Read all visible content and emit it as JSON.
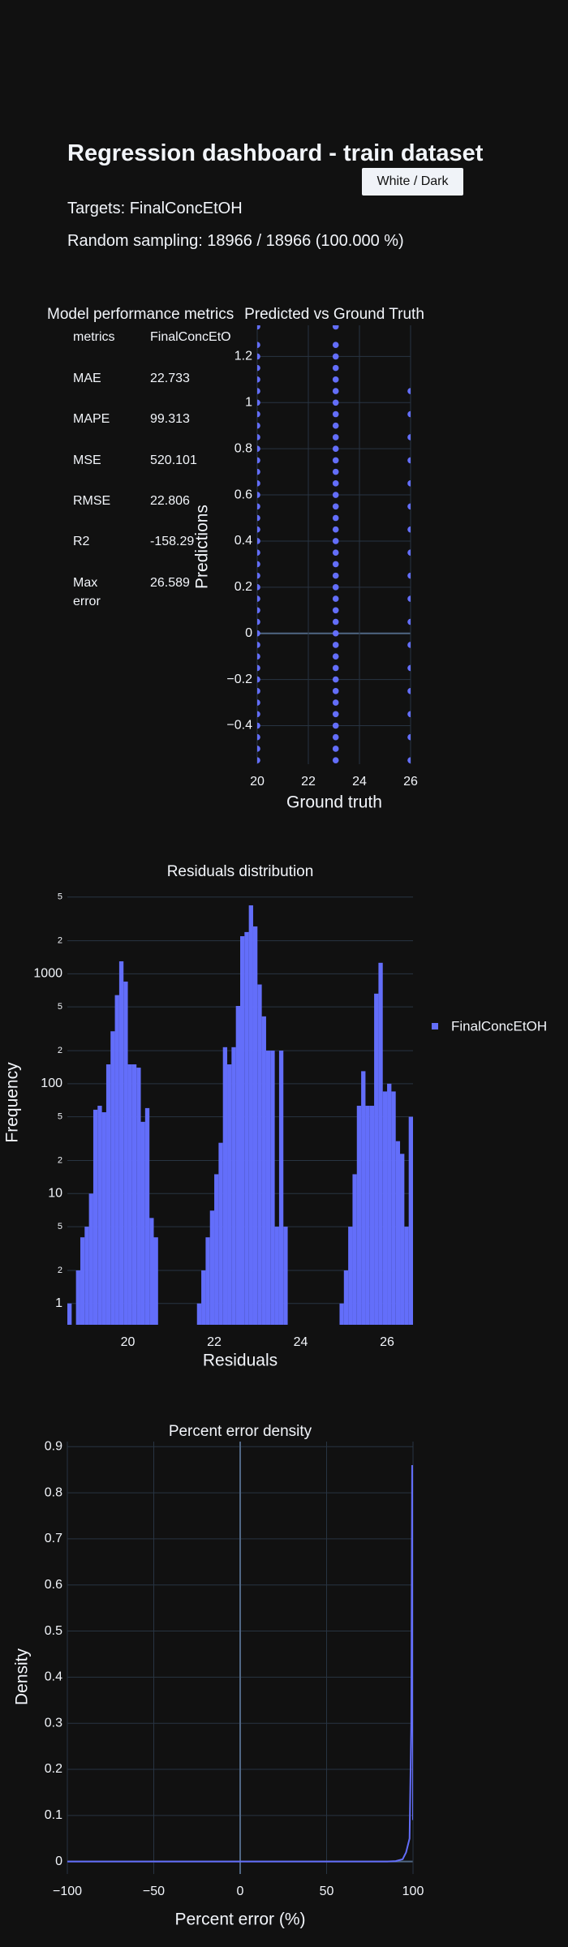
{
  "header": {
    "title": "Regression dashboard - train dataset",
    "theme_button": "White / Dark",
    "targets": "Targets: FinalConcEtOH",
    "sampling": "Random sampling: 18966 / 18966 (100.000 %)"
  },
  "metrics_table": {
    "title": "Model performance metrics",
    "columns": [
      "metrics",
      "FinalConcEtOH"
    ],
    "rows": [
      [
        "MAE",
        "22.733"
      ],
      [
        "MAPE",
        "99.313"
      ],
      [
        "MSE",
        "520.101"
      ],
      [
        "RMSE",
        "22.806"
      ],
      [
        "R2",
        "-158.29"
      ],
      [
        "Max error",
        "26.589"
      ]
    ]
  },
  "chart_data": [
    {
      "type": "scatter",
      "title": "Predicted vs Ground Truth",
      "x_label": "Ground truth",
      "y_label": "Predictions",
      "color": "#636efa",
      "grid": "both",
      "x": [
        20,
        20,
        20,
        20,
        20,
        20,
        20,
        20,
        20,
        20,
        20,
        20,
        20,
        20,
        20,
        20,
        20,
        20,
        20,
        20,
        20,
        20,
        20,
        20,
        20,
        20,
        20,
        20,
        20,
        20,
        20,
        20,
        20,
        20,
        20,
        20,
        20,
        20,
        23.07,
        23.07,
        23.07,
        23.07,
        23.07,
        23.07,
        23.07,
        23.07,
        23.07,
        23.07,
        23.07,
        23.07,
        23.07,
        23.07,
        23.07,
        23.07,
        23.07,
        23.07,
        23.07,
        23.07,
        23.07,
        23.07,
        23.07,
        23.07,
        23.07,
        23.07,
        23.07,
        23.07,
        23.07,
        23.07,
        23.07,
        23.07,
        23.07,
        23.07,
        23.07,
        23.07,
        23.07,
        23.07,
        26,
        26,
        26,
        26,
        26,
        26,
        26,
        26,
        26,
        26,
        26,
        26,
        26,
        26,
        26,
        26,
        26
      ],
      "y": [
        -0.55,
        -0.5,
        -0.45,
        -0.4,
        -0.35,
        -0.3,
        -0.25,
        -0.2,
        -0.15,
        -0.1,
        -0.05,
        0,
        0.05,
        0.1,
        0.15,
        0.2,
        0.25,
        0.3,
        0.35,
        0.4,
        0.45,
        0.5,
        0.55,
        0.6,
        0.65,
        0.7,
        0.75,
        0.8,
        0.85,
        0.9,
        0.95,
        1,
        1.05,
        1.1,
        1.15,
        1.2,
        1.25,
        1.33,
        -0.55,
        -0.5,
        -0.45,
        -0.4,
        -0.35,
        -0.3,
        -0.25,
        -0.2,
        -0.15,
        -0.1,
        -0.05,
        0,
        0.05,
        0.1,
        0.15,
        0.2,
        0.25,
        0.3,
        0.35,
        0.4,
        0.45,
        0.5,
        0.55,
        0.6,
        0.65,
        0.7,
        0.75,
        0.8,
        0.85,
        0.9,
        0.95,
        1,
        1.05,
        1.1,
        1.15,
        1.2,
        1.25,
        1.33,
        -0.55,
        -0.45,
        -0.35,
        -0.25,
        -0.15,
        -0.05,
        0.05,
        0.15,
        0.25,
        0.35,
        0.45,
        0.55,
        0.65,
        0.75,
        0.85,
        0.95,
        1.05
      ],
      "xlim": [
        20,
        26
      ],
      "ylim": [
        -0.567,
        1.335
      ],
      "xticks": [
        20,
        22,
        24,
        26
      ],
      "yticks": [
        {
          "value": -0.4,
          "label": "−0.4"
        },
        {
          "value": -0.2,
          "label": "−0.2"
        },
        0,
        0.2,
        0.4,
        0.6,
        0.8,
        1,
        1.2
      ]
    },
    {
      "type": "histogram",
      "title": "Residuals distribution",
      "x_label": "Residuals",
      "y_label": "Frequency",
      "log_y": true,
      "grid": "y",
      "legend": "right",
      "bins": [
        18.6,
        18.7,
        18.8,
        18.9,
        19.0,
        19.1,
        19.2,
        19.3,
        19.4,
        19.5,
        19.6,
        19.7,
        19.8,
        19.9,
        20.0,
        20.1,
        20.2,
        20.3,
        20.4,
        20.5,
        20.6,
        20.7,
        20.8,
        20.9,
        21.0,
        21.1,
        21.2,
        21.3,
        21.4,
        21.5,
        21.6,
        21.7,
        21.8,
        21.9,
        22.0,
        22.1,
        22.2,
        22.3,
        22.4,
        22.5,
        22.6,
        22.7,
        22.8,
        22.9,
        23.0,
        23.1,
        23.2,
        23.3,
        23.4,
        23.5,
        23.6,
        23.7,
        23.8,
        23.9,
        24.0,
        24.1,
        24.2,
        24.3,
        24.4,
        24.5,
        24.6,
        24.7,
        24.8,
        24.9,
        25.0,
        25.1,
        25.2,
        25.3,
        25.4,
        25.5,
        25.6,
        25.7,
        25.8,
        25.9,
        26.0,
        26.1,
        26.2,
        26.3,
        26.4,
        26.5,
        26.6
      ],
      "series": [
        {
          "name": "FinalConcEtOH",
          "color": "#636efa",
          "values": [
            1,
            0,
            2,
            4,
            5,
            10,
            58,
            63,
            55,
            150,
            300,
            640,
            1300,
            850,
            150,
            150,
            140,
            45,
            60,
            6,
            4,
            0,
            0,
            0,
            0,
            0,
            0,
            0,
            0,
            0,
            1,
            2,
            4,
            7,
            15,
            29,
            215,
            150,
            215,
            510,
            2200,
            2400,
            4200,
            2700,
            800,
            410,
            200,
            200,
            5,
            200,
            5,
            0,
            0,
            0,
            0,
            0,
            0,
            0,
            0,
            0,
            0,
            0,
            0,
            1,
            2,
            5,
            15,
            63,
            130,
            63,
            63,
            660,
            1260,
            85,
            100,
            85,
            30,
            23,
            5,
            50
          ]
        }
      ],
      "xlim": [
        18.6,
        26.6
      ],
      "ylim": [
        0.64,
        6000
      ],
      "xticks": [
        20,
        22,
        24,
        26
      ],
      "yticks": [
        1,
        2,
        5,
        10,
        {
          "value": 20,
          "label": "2"
        },
        {
          "value": 50,
          "label": "5"
        },
        100,
        {
          "value": 200,
          "label": "2"
        },
        {
          "value": 500,
          "label": "5"
        },
        1000,
        {
          "value": 2000,
          "label": "2"
        },
        {
          "value": 5000,
          "label": "5"
        }
      ]
    },
    {
      "type": "line",
      "title": "Percent error density",
      "x_label": "Percent error (%)",
      "y_label": "Density",
      "color": "#636efa",
      "grid": "both",
      "x": [
        -100,
        -50,
        0,
        50,
        85,
        90,
        94,
        96,
        97,
        98,
        99,
        99.5,
        99.8,
        100
      ],
      "y": [
        0,
        0,
        0,
        0,
        0,
        0.001,
        0.005,
        0.02,
        0.035,
        0.05,
        0.3,
        0.86,
        0.4,
        0.09
      ],
      "xlim": [
        -100,
        100
      ],
      "ylim": [
        -0.027,
        0.911
      ],
      "xticks": [
        {
          "value": -100,
          "label": "−100"
        },
        {
          "value": -50,
          "label": "−50"
        },
        0,
        50,
        100
      ],
      "yticks": [
        0,
        0.1,
        0.2,
        0.3,
        0.4,
        0.5,
        0.6,
        0.7,
        0.8,
        0.9
      ]
    }
  ]
}
